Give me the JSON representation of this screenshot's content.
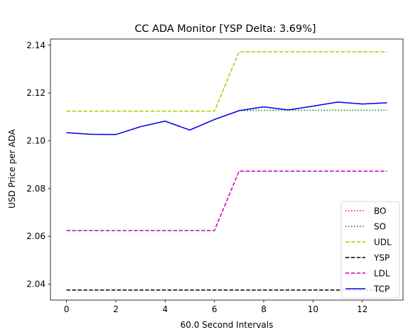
{
  "chart_data": {
    "type": "line",
    "title": "CC ADA Monitor [YSP Delta: 3.69%]",
    "xlabel": "60.0 Second Intervals",
    "ylabel": "USD Price per ADA",
    "xlim": [
      -0.65,
      13.65
    ],
    "ylim": [
      2.0333,
      2.1426
    ],
    "x_ticks": [
      0,
      2,
      4,
      6,
      8,
      10,
      12
    ],
    "y_ticks": [
      2.04,
      2.06,
      2.08,
      2.1,
      2.12,
      2.14
    ],
    "y_tick_labels": [
      "2.04",
      "2.06",
      "2.08",
      "2.10",
      "2.12",
      "2.14"
    ],
    "legend_position": "bottom-right",
    "x": [
      0,
      1,
      2,
      3,
      4,
      5,
      6,
      7,
      8,
      9,
      10,
      11,
      12,
      13
    ],
    "series": [
      {
        "name": "BO",
        "color": "#ff0000",
        "style": "dotted",
        "values": [
          2.1034,
          2.1027,
          2.1026,
          2.1059,
          2.1082,
          2.1045,
          2.1089,
          2.1126,
          2.1142,
          2.1129,
          2.1145,
          2.1162,
          2.1154,
          2.1159
        ]
      },
      {
        "name": "SO",
        "color": "#008000",
        "style": "dotted",
        "values": [
          2.1034,
          2.1027,
          2.1026,
          2.1059,
          2.1082,
          2.1045,
          2.1089,
          2.1126,
          2.1128,
          2.1128,
          2.1128,
          2.1128,
          2.1128,
          2.1128
        ]
      },
      {
        "name": "UDL",
        "color": "#bfbf00",
        "style": "dashed",
        "values": [
          2.1124,
          2.1124,
          2.1124,
          2.1124,
          2.1124,
          2.1124,
          2.1124,
          2.1373,
          2.1373,
          2.1373,
          2.1373,
          2.1373,
          2.1373,
          2.1373
        ]
      },
      {
        "name": "YSP",
        "color": "#000000",
        "style": "dashed",
        "values": [
          2.0375,
          2.0375,
          2.0375,
          2.0375,
          2.0375,
          2.0375,
          2.0375,
          2.0375,
          2.0375,
          2.0375,
          2.0375,
          2.0375,
          2.0375,
          2.0375
        ]
      },
      {
        "name": "LDL",
        "color": "#bf00bf",
        "style": "dashed",
        "values": [
          2.0624,
          2.0624,
          2.0624,
          2.0624,
          2.0624,
          2.0624,
          2.0624,
          2.0873,
          2.0873,
          2.0873,
          2.0873,
          2.0873,
          2.0873,
          2.0873
        ]
      },
      {
        "name": "TCP",
        "color": "#0000ff",
        "style": "solid",
        "values": [
          2.1034,
          2.1027,
          2.1026,
          2.1059,
          2.1082,
          2.1045,
          2.1089,
          2.1126,
          2.1142,
          2.1129,
          2.1145,
          2.1162,
          2.1154,
          2.1159
        ]
      }
    ]
  }
}
